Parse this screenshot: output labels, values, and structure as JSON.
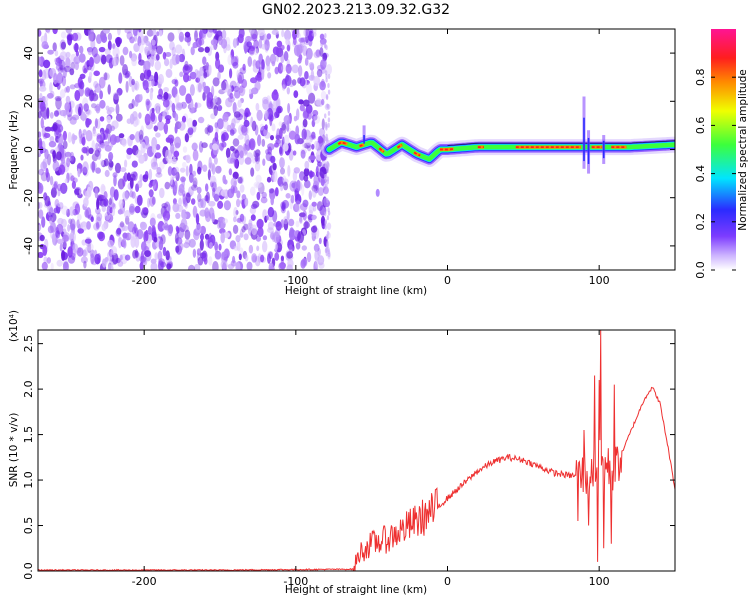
{
  "title": "GN02.2023.213.09.32.G32",
  "chart_data": [
    {
      "type": "heatmap",
      "xlabel": "Height of straight line (km)",
      "ylabel": "Frequency (Hz)",
      "xlim": [
        -270,
        150
      ],
      "ylim": [
        -50,
        50
      ],
      "xticks": [
        -200,
        -100,
        0,
        100
      ],
      "yticks": [
        -40,
        -20,
        0,
        20,
        40
      ],
      "noise_region_x": [
        -270,
        -78
      ],
      "colorbar": {
        "label": "Normalized spectral amplitude",
        "range": [
          0.0,
          1.0
        ],
        "ticks": [
          "0.0",
          "0.2",
          "0.4",
          "0.6",
          "0.8"
        ],
        "colormap": [
          "#ffffff",
          "#7d3cff",
          "#2b2bff",
          "#00e5ff",
          "#3cff3c",
          "#f0ff00",
          "#ff8a00",
          "#ff1e1e",
          "#ff1493"
        ]
      },
      "ridge": {
        "x": [
          -78,
          -70,
          -60,
          -50,
          -40,
          -30,
          -20,
          -12,
          -5,
          0,
          20,
          40,
          60,
          80,
          100,
          120,
          150
        ],
        "frequency": [
          0,
          3,
          1,
          3,
          -2,
          2,
          -2,
          -4,
          0,
          0,
          1,
          1,
          1,
          1,
          1,
          1,
          2
        ]
      }
    },
    {
      "type": "line",
      "xlabel": "Height of straight line (km)",
      "ylabel": "SNR (10 * v/v)",
      "y_scale_label": "(x10⁴)",
      "xlim": [
        -270,
        150
      ],
      "ylim": [
        0,
        2.65
      ],
      "xticks": [
        -200,
        -100,
        0,
        100
      ],
      "yticks": [
        "0.0",
        "0.5",
        "1.0",
        "1.5",
        "2.0",
        "2.5"
      ],
      "color": "#ee3030",
      "series": [
        {
          "x": [
            -270,
            -150,
            -62,
            -58,
            -50,
            -40,
            -30,
            -20,
            -10,
            0,
            10,
            20,
            30,
            40,
            50,
            60,
            70,
            80,
            90,
            95,
            100,
            105,
            110,
            115,
            120,
            130,
            135,
            140,
            145,
            150
          ],
          "y": [
            0.01,
            0.01,
            0.02,
            0.2,
            0.3,
            0.35,
            0.45,
            0.55,
            0.65,
            0.8,
            0.95,
            1.1,
            1.2,
            1.25,
            1.22,
            1.15,
            1.08,
            1.05,
            1.05,
            1.1,
            1.2,
            1.15,
            1.1,
            1.3,
            1.5,
            1.9,
            2.02,
            1.85,
            1.4,
            0.9
          ]
        }
      ],
      "spikes": [
        {
          "x": 86,
          "y": 0.55
        },
        {
          "x": 90,
          "y": 1.55
        },
        {
          "x": 93,
          "y": 0.5
        },
        {
          "x": 97,
          "y": 2.15
        },
        {
          "x": 99,
          "y": 0.1
        },
        {
          "x": 100,
          "y": 2.1
        },
        {
          "x": 101,
          "y": 2.65
        },
        {
          "x": 103,
          "y": 0.25
        },
        {
          "x": 106,
          "y": 1.35
        },
        {
          "x": 108,
          "y": 0.3
        },
        {
          "x": 110,
          "y": 2.05
        }
      ]
    }
  ]
}
